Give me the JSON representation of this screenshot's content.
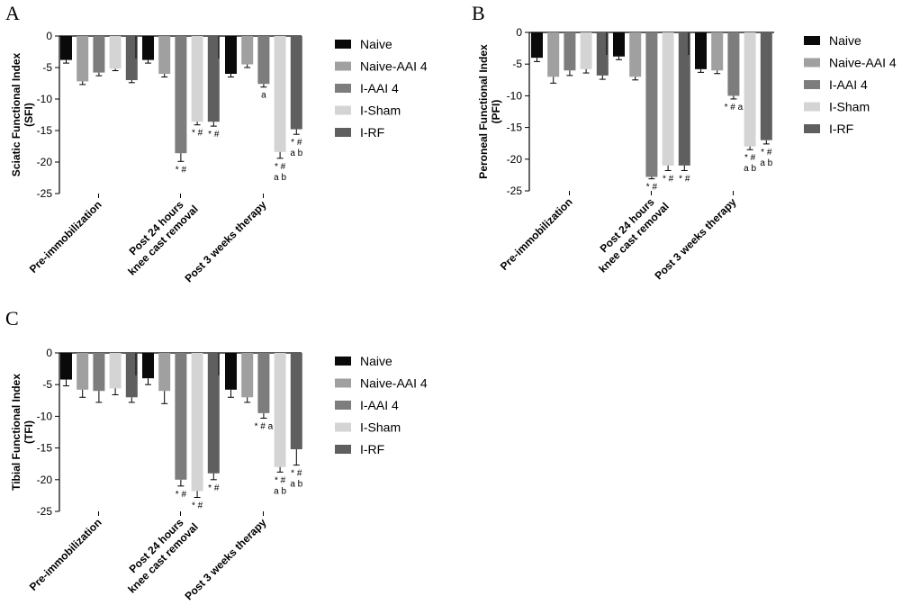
{
  "colors": {
    "Naive": "#0a0a0a",
    "Naive-AAI 4": "#a0a0a0",
    "I-AAI 4": "#7d7d7d",
    "I-Sham": "#d4d4d4",
    "I-RF": "#5f5f5f"
  },
  "chart_data": [
    {
      "panel": "A",
      "type": "bar",
      "ylabel": "Sciatic Functional Index (SFI)",
      "ylim": [
        -25,
        0
      ],
      "yticks": [
        "0",
        "-5",
        "-10",
        "-15",
        "-20",
        "-25"
      ],
      "categories": [
        "Pre-immobilization",
        "Post 24 hours knee cast removal",
        "Post 3 weeks therapy"
      ],
      "category_lines": [
        [
          "Pre-immobilization"
        ],
        [
          "Post 24 hours",
          "knee cast removal"
        ],
        [
          "Post 3 weeks therapy"
        ]
      ],
      "legend": [
        "Naive",
        "Naive-AAI 4",
        "I-AAI 4",
        "I-Sham",
        "I-RF"
      ],
      "series": [
        {
          "name": "Naive",
          "values": [
            -3.8,
            -3.8,
            -6.0
          ],
          "errors": [
            0.5,
            0.5,
            0.5
          ],
          "annotations": [
            "",
            "",
            ""
          ]
        },
        {
          "name": "Naive-AAI 4",
          "values": [
            -7.2,
            -6.0,
            -4.5
          ],
          "errors": [
            0.5,
            0.5,
            0.5
          ],
          "annotations": [
            "",
            "",
            ""
          ]
        },
        {
          "name": "I-AAI 4",
          "values": [
            -5.8,
            -18.6,
            -7.6
          ],
          "errors": [
            0.5,
            1.3,
            0.5
          ],
          "annotations": [
            "",
            "* #",
            "a"
          ]
        },
        {
          "name": "I-Sham",
          "values": [
            -5.2,
            -13.6,
            -18.4
          ],
          "errors": [
            0.3,
            0.5,
            1.0
          ],
          "annotations": [
            "",
            "* #",
            "* #|a b"
          ]
        },
        {
          "name": "I-RF",
          "values": [
            -7.0,
            -13.6,
            -14.8
          ],
          "errors": [
            0.4,
            0.7,
            0.8
          ],
          "annotations": [
            "",
            "* #",
            "* #|a b"
          ]
        }
      ]
    },
    {
      "panel": "B",
      "type": "bar",
      "ylabel": "Peroneal Functional Index (PFI)",
      "ylim": [
        -25,
        0
      ],
      "yticks": [
        "0",
        "-5",
        "-10",
        "-15",
        "-20",
        "-25"
      ],
      "categories": [
        "Pre-immobilization",
        "Post 24 hours knee cast removal",
        "Post 3 weeks therapy"
      ],
      "category_lines": [
        [
          "Pre-immobilization"
        ],
        [
          "Post 24 hours",
          "knee cast removal"
        ],
        [
          "Post 3 weeks therapy"
        ]
      ],
      "legend": [
        "Naive",
        "Naive-AAI 4",
        "I-AAI 4",
        "I-Sham",
        "I-RF"
      ],
      "series": [
        {
          "name": "Naive",
          "values": [
            -4.0,
            -3.8,
            -5.8
          ],
          "errors": [
            0.6,
            0.5,
            0.5
          ],
          "annotations": [
            "",
            "",
            ""
          ]
        },
        {
          "name": "Naive-AAI 4",
          "values": [
            -7.0,
            -7.0,
            -6.0
          ],
          "errors": [
            1.0,
            0.5,
            0.5
          ],
          "annotations": [
            "",
            "",
            ""
          ]
        },
        {
          "name": "I-AAI 4",
          "values": [
            -6.0,
            -22.8,
            -10.0
          ],
          "errors": [
            0.8,
            0.3,
            0.5
          ],
          "annotations": [
            "",
            "* #",
            "* # a"
          ]
        },
        {
          "name": "I-Sham",
          "values": [
            -5.8,
            -21.0,
            -18.0
          ],
          "errors": [
            0.6,
            0.8,
            0.5
          ],
          "annotations": [
            "",
            "* #",
            "* #|a b"
          ]
        },
        {
          "name": "I-RF",
          "values": [
            -6.8,
            -21.0,
            -17.0
          ],
          "errors": [
            0.6,
            0.8,
            0.6
          ],
          "annotations": [
            "",
            "* #",
            "* #|a b"
          ]
        }
      ]
    },
    {
      "panel": "C",
      "type": "bar",
      "ylabel": "Tibial Functional Index (TFI)",
      "ylim": [
        -25,
        0
      ],
      "yticks": [
        "0",
        "-5",
        "-10",
        "-15",
        "-20",
        "-25"
      ],
      "categories": [
        "Pre-immobilization",
        "Post 24 hours knee cast removal",
        "Post 3 weeks therapy"
      ],
      "category_lines": [
        [
          "Pre-immobilization"
        ],
        [
          "Post 24 hours",
          "knee cast removal"
        ],
        [
          "Post 3 weeks therapy"
        ]
      ],
      "legend": [
        "Naive",
        "Naive-AAI 4",
        "I-AAI 4",
        "I-Sham",
        "I-RF"
      ],
      "series": [
        {
          "name": "Naive",
          "values": [
            -4.2,
            -4.0,
            -5.8
          ],
          "errors": [
            1.0,
            1.0,
            1.2
          ],
          "annotations": [
            "",
            "",
            ""
          ]
        },
        {
          "name": "Naive-AAI 4",
          "values": [
            -5.8,
            -6.0,
            -7.0
          ],
          "errors": [
            1.2,
            2.0,
            0.8
          ],
          "annotations": [
            "",
            "",
            ""
          ]
        },
        {
          "name": "I-AAI 4",
          "values": [
            -6.0,
            -20.0,
            -9.5
          ],
          "errors": [
            1.8,
            1.0,
            0.8
          ],
          "annotations": [
            "",
            "* #",
            "* # a"
          ]
        },
        {
          "name": "I-Sham",
          "values": [
            -5.6,
            -21.8,
            -18.0
          ],
          "errors": [
            1.0,
            1.0,
            0.8
          ],
          "annotations": [
            "",
            "* #",
            "* #|a b"
          ]
        },
        {
          "name": "I-RF",
          "values": [
            -7.0,
            -19.0,
            -15.2
          ],
          "errors": [
            0.8,
            1.0,
            2.5
          ],
          "annotations": [
            "",
            "* #",
            "* #|a b"
          ]
        }
      ]
    }
  ]
}
